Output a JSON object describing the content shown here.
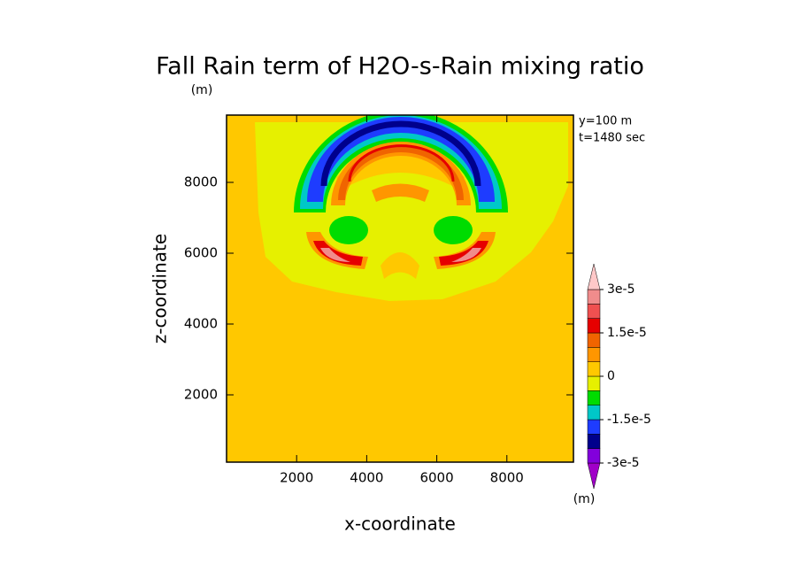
{
  "chart_data": {
    "type": "contour",
    "title": "Fall Rain term of H2O-s-Rain mixing ratio",
    "subtitle": "(m)",
    "annotations": [
      "y=100 m",
      "t=1480 sec"
    ],
    "xlabel": "x-coordinate",
    "ylabel": "z-coordinate",
    "xlim": [
      0,
      9900
    ],
    "ylim": [
      100,
      9900
    ],
    "xticks": [
      2000,
      4000,
      6000,
      8000
    ],
    "yticks": [
      2000,
      4000,
      6000,
      8000
    ],
    "colorbar": {
      "levels": [
        -3e-05,
        -2.5e-05,
        -2e-05,
        -1.5e-05,
        -1e-05,
        -5e-06,
        0,
        5e-06,
        1e-05,
        1.5e-05,
        2e-05,
        2.5e-05,
        3e-05
      ],
      "colors": [
        "#a000c8",
        "#8200dc",
        "#00008c",
        "#1e3cff",
        "#00c8c8",
        "#00dc00",
        "#e6f000",
        "#ffc800",
        "#ff9600",
        "#f06400",
        "#e60000",
        "#f05050",
        "#f08c8c",
        "#ffc8c8"
      ],
      "ticks": [
        {
          "value": 3e-05,
          "label": "3e-5"
        },
        {
          "value": 1.5e-05,
          "label": "1.5e-5"
        },
        0,
        {
          "value": -1.5e-05,
          "label": "-1.5e-5"
        },
        {
          "value": -3e-05,
          "label": "-3e-5"
        }
      ],
      "unit": "(m)"
    }
  }
}
